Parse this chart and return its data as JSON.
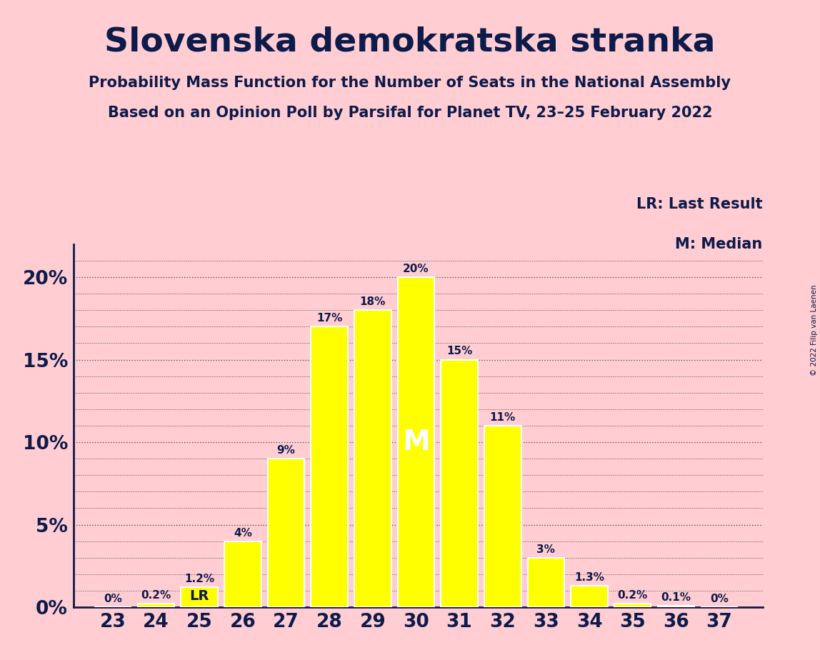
{
  "title": "Slovenska demokratska stranka",
  "subtitle1": "Probability Mass Function for the Number of Seats in the National Assembly",
  "subtitle2": "Based on an Opinion Poll by Parsifal for Planet TV, 23–25 February 2022",
  "copyright": "© 2022 Filip van Laenen",
  "seats": [
    23,
    24,
    25,
    26,
    27,
    28,
    29,
    30,
    31,
    32,
    33,
    34,
    35,
    36,
    37
  ],
  "probabilities": [
    0.0,
    0.2,
    1.2,
    4.0,
    9.0,
    17.0,
    18.0,
    20.0,
    15.0,
    11.0,
    3.0,
    1.3,
    0.2,
    0.1,
    0.0
  ],
  "bar_color": "#FFFF00",
  "bar_edge_color": "#FFFFFF",
  "background_color": "#FFCDD2",
  "text_color": "#0D1B4B",
  "last_result_seat": 25,
  "median_seat": 30,
  "yticks": [
    0,
    5,
    10,
    15,
    20
  ],
  "ylabel_labels": [
    "0%",
    "5%",
    "10%",
    "15%",
    "20%"
  ],
  "ylim": [
    0,
    22
  ],
  "legend_lr": "LR: Last Result",
  "legend_m": "M: Median",
  "annotation_color_m": "#FFFFFF",
  "dotted_line_color": "#555555"
}
